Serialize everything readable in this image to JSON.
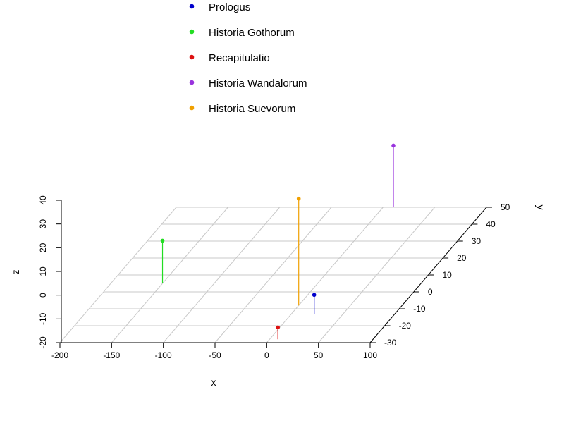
{
  "chart_data": {
    "type": "scatter",
    "subtype": "3d-scatter-with-drop-lines",
    "xlabel": "x",
    "ylabel": "y",
    "zlabel": "z",
    "xlim": [
      -200,
      100
    ],
    "ylim": [
      -30,
      50
    ],
    "zlim": [
      -20,
      40
    ],
    "x_ticks": [
      "-200",
      "-150",
      "-100",
      "-50",
      "0",
      "50",
      "100"
    ],
    "y_ticks": [
      "-30",
      "-20",
      "-10",
      "0",
      "10",
      "20",
      "30",
      "40",
      "50"
    ],
    "z_ticks": [
      "-20",
      "-10",
      "0",
      "10",
      "20",
      "30",
      "40"
    ],
    "grid": "xy-plane",
    "legend_position": "top",
    "series": [
      {
        "name": "Prologus",
        "color": "#0000cc",
        "x": 22,
        "y": -13,
        "z": 8
      },
      {
        "name": "Historia Gothorum",
        "color": "#22dd22",
        "x": -150,
        "y": 5,
        "z": 18
      },
      {
        "name": "Recapitulatio",
        "color": "#dd1111",
        "x": 8,
        "y": -28,
        "z": 5
      },
      {
        "name": "Historia Wandalorum",
        "color": "#9933dd",
        "x": 10,
        "y": 50,
        "z": 26
      },
      {
        "name": "Historia Suevorum",
        "color": "#f0a000",
        "x": 0,
        "y": -8,
        "z": 45
      }
    ]
  }
}
